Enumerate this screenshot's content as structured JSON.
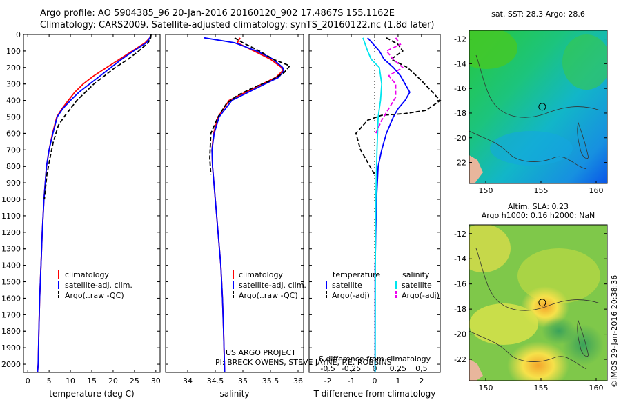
{
  "header": {
    "line1": "Argo profile: AO 5904385_96 20-Jan-2016 20160120_902 17.4867S 155.1162E",
    "line2": "Climatology: CARS2009. Satellite-adjusted climatology: synTS_20160122.nc (1.8d later)"
  },
  "colors": {
    "climatology": "#ff0000",
    "satellite": "#0000ff",
    "argo": "#000000",
    "sal_satellite": "#00e5ee",
    "sal_argo": "#ee00ee"
  },
  "depth_axis": {
    "ticks": [
      0,
      100,
      200,
      300,
      400,
      500,
      600,
      700,
      800,
      900,
      1000,
      1100,
      1200,
      1300,
      1400,
      1500,
      1600,
      1700,
      1800,
      1900,
      2000
    ]
  },
  "chart_data": [
    {
      "type": "line",
      "name": "temperature",
      "xlabel": "temperature (deg C)",
      "xlim": [
        -1,
        31
      ],
      "xticks": [
        0,
        5,
        10,
        15,
        20,
        25,
        30
      ],
      "ylim": [
        0,
        2050
      ],
      "legend": [
        "climatology",
        "satellite-adj. clim.",
        "Argo(..raw -QC)"
      ],
      "series": [
        {
          "name": "climatology",
          "x": [
            28.8,
            28.6,
            27.5,
            24.5,
            21.5,
            18.5,
            15.5,
            13,
            11,
            9.5,
            8,
            6.8,
            5.8,
            5,
            4.4,
            3.8,
            3.4,
            3.1,
            2.8,
            2.6,
            2.45,
            2.3
          ],
          "y": [
            0,
            20,
            50,
            100,
            150,
            200,
            250,
            300,
            350,
            400,
            450,
            500,
            600,
            700,
            800,
            1000,
            1200,
            1400,
            1600,
            1800,
            2000,
            2050
          ]
        },
        {
          "name": "satellite-adj. clim.",
          "x": [
            28.8,
            28.6,
            27.8,
            24.8,
            22,
            19.5,
            17,
            14.5,
            12,
            10,
            8.2,
            6.9,
            5.9,
            5,
            4.4,
            3.8,
            3.4,
            3.1,
            2.8,
            2.6,
            2.45,
            2.3
          ],
          "y": [
            0,
            20,
            50,
            100,
            150,
            200,
            250,
            300,
            350,
            400,
            450,
            500,
            600,
            700,
            800,
            1000,
            1200,
            1400,
            1600,
            1800,
            2000,
            2050
          ]
        },
        {
          "name": "Argo(..raw -QC)",
          "x": [
            28.9,
            28.8,
            28.2,
            26,
            23.5,
            20.5,
            18,
            15.5,
            13.5,
            11.5,
            10,
            8.5,
            7.2,
            6,
            5.2,
            4.5,
            3.9
          ],
          "y": [
            0,
            20,
            50,
            100,
            150,
            200,
            250,
            300,
            350,
            400,
            450,
            500,
            550,
            650,
            750,
            850,
            1000
          ]
        }
      ]
    },
    {
      "type": "line",
      "name": "salinity",
      "xlabel": "salinity",
      "xlim": [
        33.6,
        36.1
      ],
      "xticks": [
        34,
        34.5,
        35,
        35.5,
        36
      ],
      "ylim": [
        0,
        2050
      ],
      "legend": [
        "climatology",
        "satellite-adj. clim.",
        "Argo(..raw -QC)"
      ],
      "series": [
        {
          "name": "climatology",
          "x": [
            34.95,
            34.9,
            35.2,
            35.5,
            35.7,
            35.72,
            35.6,
            35.35,
            35.05,
            34.75,
            34.55,
            34.47,
            34.44,
            34.45,
            34.5,
            34.55,
            34.6,
            34.63,
            34.65,
            34.67
          ],
          "y": [
            20,
            50,
            100,
            150,
            200,
            220,
            260,
            300,
            350,
            400,
            500,
            600,
            700,
            800,
            1000,
            1200,
            1400,
            1600,
            1800,
            2050
          ]
        },
        {
          "name": "satellite-adj. clim.",
          "x": [
            34.3,
            34.85,
            35.25,
            35.55,
            35.72,
            35.74,
            35.65,
            35.4,
            35.1,
            34.8,
            34.57,
            34.48,
            34.44,
            34.45,
            34.5,
            34.55,
            34.6,
            34.63,
            34.65,
            34.67
          ],
          "y": [
            20,
            50,
            100,
            150,
            200,
            220,
            260,
            300,
            350,
            400,
            500,
            600,
            700,
            800,
            1000,
            1200,
            1400,
            1600,
            1800,
            2050
          ]
        },
        {
          "name": "Argo(..raw -QC)",
          "x": [
            34.85,
            35.0,
            35.3,
            35.55,
            35.85,
            35.75,
            35.5,
            35.2,
            34.9,
            34.7,
            34.55,
            34.42,
            34.4,
            34.42
          ],
          "y": [
            20,
            50,
            100,
            150,
            190,
            230,
            280,
            320,
            370,
            420,
            500,
            600,
            750,
            850
          ]
        }
      ]
    },
    {
      "type": "line",
      "name": "difference",
      "xlabel": "T difference from climatology",
      "xlabel_top": "S difference from climatology",
      "xlim": [
        -2.8,
        2.8
      ],
      "xticks": [
        -2,
        -1,
        0,
        1,
        2
      ],
      "xticks_top": [
        -0.5,
        -0.25,
        0,
        0.25,
        0.5
      ],
      "ylim": [
        0,
        2050
      ],
      "legend_headers": [
        "temperature",
        "salinity"
      ],
      "legend": [
        "satellite",
        "Argo(-adj)",
        "satellite",
        "Argo(-adj)"
      ],
      "series": [
        {
          "name": "temperature satellite",
          "x": [
            -0.3,
            0.2,
            0.4,
            0.8,
            1.1,
            1.3,
            1.5,
            1.3,
            1.0,
            0.8,
            0.5,
            0.3,
            0.15,
            0.08,
            0.02,
            0.02
          ],
          "y": [
            20,
            100,
            150,
            200,
            250,
            300,
            350,
            400,
            450,
            500,
            600,
            700,
            800,
            1000,
            1400,
            2050
          ]
        },
        {
          "name": "temperature Argo(-adj)",
          "x": [
            0.5,
            1.0,
            1.2,
            0.7,
            1.4,
            2.0,
            2.8,
            2.2,
            1.3,
            0.3,
            -0.3,
            -0.8,
            -0.6,
            -0.2,
            0
          ],
          "y": [
            20,
            60,
            100,
            150,
            200,
            280,
            400,
            460,
            480,
            490,
            520,
            600,
            700,
            800,
            850
          ]
        },
        {
          "name": "salinity satellite",
          "x": [
            -0.5,
            -0.3,
            -0.15,
            0.2,
            0.3,
            0.25,
            0.15,
            0.1,
            0.05,
            0.03,
            0.02
          ],
          "y": [
            20,
            100,
            150,
            200,
            300,
            400,
            500,
            700,
            1000,
            1400,
            2050
          ]
        },
        {
          "name": "salinity Argo(-adj)",
          "x": [
            0.9,
            1.1,
            0.5,
            0.8,
            1.2,
            0.6,
            0.9,
            0.9,
            0.6,
            0.3,
            0.05
          ],
          "y": [
            20,
            60,
            100,
            150,
            200,
            250,
            300,
            380,
            450,
            520,
            600
          ]
        }
      ]
    }
  ],
  "legend_labels": {
    "clim": "climatology",
    "sat": "satellite-adj. clim.",
    "argo": "Argo(..raw -QC)",
    "temperature": "temperature",
    "salinity": "salinity",
    "satellite": "satellite",
    "argo_adj": "Argo(-adj)"
  },
  "project": {
    "line1": "US ARGO PROJECT",
    "line2": "PI: BRECK OWENS, STEVE JAYNE, P.E. ROBBINS"
  },
  "maps": {
    "sst": {
      "title": "sat. SST: 28.3 Argo: 28.6"
    },
    "sla": {
      "title1": "Altim. SLA: 0.23",
      "title2": "Argo h1000: 0.16 h2000: NaN"
    },
    "lat_ticks": [
      -12,
      -14,
      -16,
      -18,
      -20,
      -22
    ],
    "lon_ticks": [
      150,
      155,
      160
    ],
    "lon_range": [
      148.5,
      161
    ],
    "lat_range": [
      -11.3,
      -23.7
    ],
    "float_position": {
      "lon": 155.1162,
      "lat": -17.4867
    }
  },
  "credit": "©IMOS 29-Jan-2016 20:38:36"
}
